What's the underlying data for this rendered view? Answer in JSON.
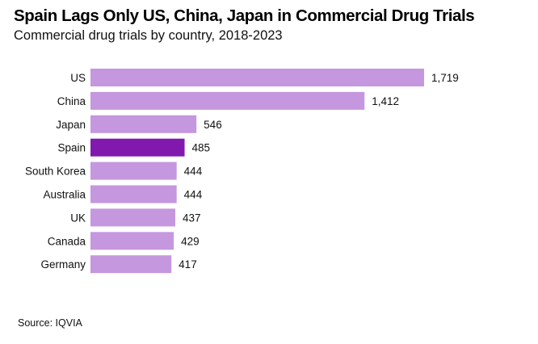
{
  "chart_data": {
    "type": "bar",
    "orientation": "horizontal",
    "title": "Spain Lags Only US, China, Japan in Commercial Drug Trials",
    "subtitle": "Commercial drug trials by country, 2018-2023",
    "xlabel": "",
    "ylabel": "",
    "categories": [
      "US",
      "China",
      "Japan",
      "Spain",
      "South Korea",
      "Australia",
      "UK",
      "Canada",
      "Germany"
    ],
    "values": [
      1719,
      1412,
      546,
      485,
      444,
      444,
      437,
      429,
      417
    ],
    "value_labels": [
      "1,719",
      "1,412",
      "546",
      "485",
      "444",
      "444",
      "437",
      "429",
      "417"
    ],
    "highlight": "Spain",
    "colors": {
      "default": "#c597de",
      "highlight": "#8119af"
    },
    "xlim": [
      0,
      1719
    ],
    "grid": false,
    "legend": "none",
    "source": "Source: IQVIA"
  }
}
